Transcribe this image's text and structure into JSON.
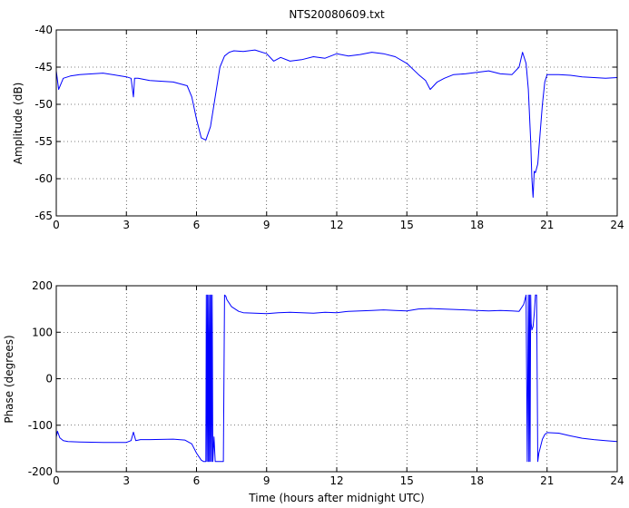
{
  "chart_data": [
    {
      "type": "line",
      "title": "NTS20080609.txt",
      "xlabel": "",
      "ylabel": "Amplitude (dB)",
      "xlim": [
        0,
        24
      ],
      "ylim": [
        -65,
        -40
      ],
      "xticks": [
        0,
        3,
        6,
        9,
        12,
        15,
        18,
        21,
        24
      ],
      "yticks": [
        -65,
        -60,
        -55,
        -50,
        -45,
        -40
      ],
      "grid": true,
      "color": "#0000ff",
      "series": [
        {
          "x": [
            0,
            0.1,
            0.3,
            0.6,
            1,
            2,
            3,
            3.2,
            3.3,
            3.35,
            3.5,
            4,
            5,
            5.6,
            5.8,
            6,
            6.2,
            6.4,
            6.6,
            6.8,
            7,
            7.2,
            7.4,
            7.6,
            8,
            8.5,
            9,
            9.3,
            9.6,
            10,
            10.5,
            11,
            11.5,
            12,
            12.5,
            13,
            13.5,
            14,
            14.5,
            15,
            15.5,
            15.8,
            16,
            16.3,
            16.6,
            17,
            17.5,
            18,
            18.5,
            19,
            19.5,
            19.8,
            19.95,
            20.1,
            20.2,
            20.3,
            20.35,
            20.4,
            20.45,
            20.5,
            20.6,
            20.7,
            20.8,
            20.9,
            21,
            21.5,
            22,
            22.5,
            23,
            23.5,
            24
          ],
          "y": [
            -45.5,
            -48,
            -46.5,
            -46.2,
            -46,
            -45.8,
            -46.3,
            -46.5,
            -49,
            -46.5,
            -46.5,
            -46.8,
            -47,
            -47.5,
            -49,
            -52,
            -54.5,
            -54.8,
            -53,
            -49,
            -45,
            -43.5,
            -43,
            -42.8,
            -42.9,
            -42.7,
            -43.2,
            -44.2,
            -43.7,
            -44.2,
            -44,
            -43.6,
            -43.8,
            -43.2,
            -43.5,
            -43.3,
            -43,
            -43.2,
            -43.6,
            -44.5,
            -46,
            -46.8,
            -48,
            -47,
            -46.5,
            -46,
            -45.9,
            -45.7,
            -45.5,
            -45.9,
            -46,
            -45,
            -43,
            -44.5,
            -48,
            -55,
            -60,
            -62.5,
            -59,
            -59.2,
            -58,
            -54,
            -50,
            -47,
            -46,
            -46,
            -46.1,
            -46.3,
            -46.4,
            -46.5,
            -46.4
          ]
        }
      ]
    },
    {
      "type": "line",
      "title": "",
      "xlabel": "Time (hours after midnight UTC)",
      "ylabel": "Phase (degrees)",
      "xlim": [
        0,
        24
      ],
      "ylim": [
        -200,
        200
      ],
      "xticks": [
        0,
        3,
        6,
        9,
        12,
        15,
        18,
        21,
        24
      ],
      "yticks": [
        -200,
        -100,
        0,
        100,
        200
      ],
      "grid": true,
      "color": "#0000ff",
      "series": [
        {
          "x": [
            0,
            0.05,
            0.15,
            0.3,
            0.5,
            1,
            2,
            3,
            3.2,
            3.3,
            3.4,
            3.6,
            4,
            5,
            5.5,
            5.8,
            6,
            6.2,
            6.3,
            6.4,
            6.42,
            6.45,
            6.47,
            6.5,
            6.52,
            6.55,
            6.57,
            6.6,
            6.62,
            6.65,
            6.67,
            6.7,
            6.75,
            6.8,
            6.85,
            6.9,
            7,
            7.1,
            7.15,
            7.2,
            7.25,
            7.3,
            7.5,
            7.8,
            8,
            8.5,
            9,
            9.5,
            10,
            10.5,
            11,
            11.5,
            12,
            12.5,
            13,
            13.5,
            14,
            14.5,
            15,
            15.5,
            16,
            16.5,
            17,
            17.5,
            18,
            18.5,
            19,
            19.5,
            19.8,
            20,
            20.1,
            20.15,
            20.2,
            20.22,
            20.25,
            20.27,
            20.3,
            20.32,
            20.35,
            20.4,
            20.45,
            20.5,
            20.55,
            20.6,
            20.62,
            20.65,
            20.7,
            20.75,
            20.8,
            20.85,
            20.9,
            21,
            21.5,
            22,
            22.5,
            23,
            23.5,
            24
          ],
          "y": [
            -125,
            -113,
            -127,
            -133,
            -135,
            -136,
            -137,
            -137,
            -133,
            -115,
            -133,
            -131,
            -131,
            -130,
            -132,
            -140,
            -160,
            -175,
            -178,
            -178,
            180,
            -178,
            180,
            -178,
            180,
            -178,
            180,
            -178,
            180,
            -178,
            180,
            -178,
            -125,
            -178,
            -178,
            -178,
            -178,
            -178,
            -178,
            180,
            178,
            170,
            155,
            145,
            142,
            141,
            140,
            142,
            143,
            142,
            141,
            143,
            142,
            145,
            146,
            147,
            148,
            147,
            146,
            150,
            151,
            150,
            149,
            148,
            147,
            146,
            147,
            146,
            145,
            160,
            180,
            -178,
            180,
            -178,
            180,
            -178,
            180,
            120,
            105,
            112,
            140,
            180,
            180,
            -178,
            -170,
            -160,
            -150,
            -140,
            -130,
            -125,
            -120,
            -116,
            -117,
            -123,
            -128,
            -131,
            -133,
            -135
          ]
        }
      ]
    }
  ]
}
